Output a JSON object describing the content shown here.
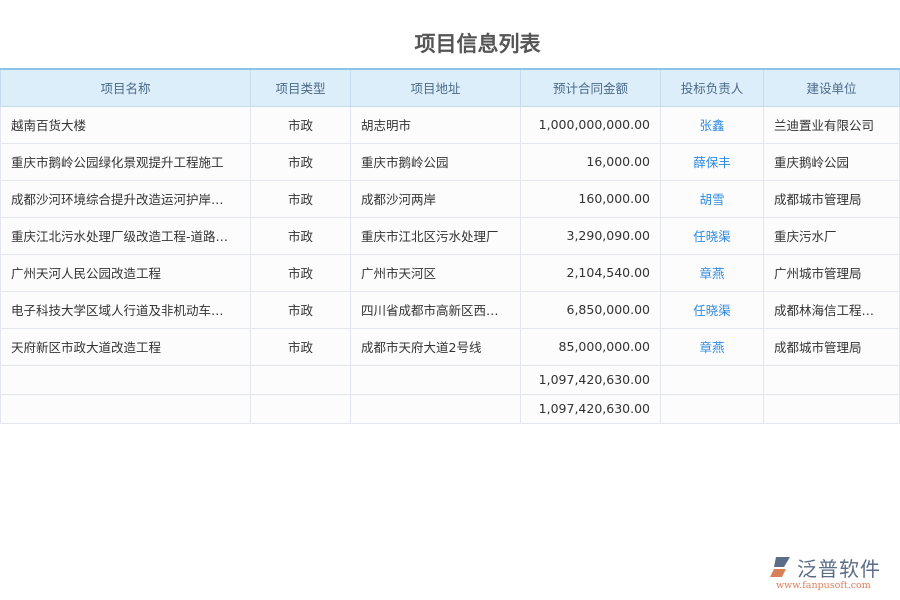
{
  "title": "项目信息列表",
  "columns": [
    "项目名称",
    "项目类型",
    "项目地址",
    "预计合同金额",
    "投标负责人",
    "建设单位"
  ],
  "rows": [
    [
      "越南百货大楼",
      "市政",
      "胡志明市",
      "1,000,000,000.00",
      "张鑫",
      "兰迪置业有限公司"
    ],
    [
      "重庆市鹅岭公园绿化景观提升工程施工",
      "市政",
      "重庆市鹅岭公园",
      "16,000.00",
      "薛保丰",
      "重庆鹅岭公园"
    ],
    [
      "成都沙河环境综合提升改造运河护岸…",
      "市政",
      "成都沙河两岸",
      "160,000.00",
      "胡雪",
      "成都城市管理局"
    ],
    [
      "重庆江北污水处理厂级改造工程-道路…",
      "市政",
      "重庆市江北区污水处理厂",
      "3,290,090.00",
      "任晓渠",
      "重庆污水厂"
    ],
    [
      "广州天河人民公园改造工程",
      "市政",
      "广州市天河区",
      "2,104,540.00",
      "章燕",
      "广州城市管理局"
    ],
    [
      "电子科技大学区域人行道及非机动车…",
      "市政",
      "四川省成都市高新区西…",
      "6,850,000.00",
      "任晓渠",
      "成都林海信工程…"
    ],
    [
      "天府新区市政大道改造工程",
      "市政",
      "成都市天府大道2号线",
      "85,000,000.00",
      "章燕",
      "成都城市管理局"
    ]
  ],
  "summary": [
    "1,097,420,630.00",
    "1,097,420,630.00"
  ],
  "logo": {
    "name": "泛普软件",
    "url": "www.fanpusoft.com"
  }
}
